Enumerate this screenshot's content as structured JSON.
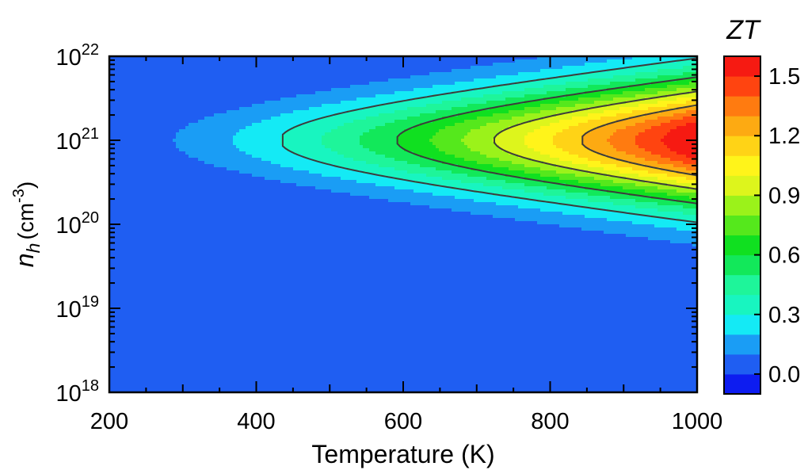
{
  "chart_data": {
    "type": "heatmap",
    "title": "",
    "xlabel": "Temperature (K)",
    "ylabel": {
      "symbol": "n",
      "subscript": "h",
      "unit_open": "(cm",
      "unit_exponent": "-3",
      "unit_close": ")"
    },
    "x_range": [
      200,
      1000
    ],
    "x_ticks": [
      "200",
      "400",
      "600",
      "800",
      "1000"
    ],
    "y_scale": "log",
    "y_range": [
      1e+18,
      1e+22
    ],
    "y_ticks": [
      {
        "base": "10",
        "exp": "18"
      },
      {
        "base": "10",
        "exp": "19"
      },
      {
        "base": "10",
        "exp": "20"
      },
      {
        "base": "10",
        "exp": "21"
      },
      {
        "base": "10",
        "exp": "22"
      }
    ],
    "colorbar": {
      "label": "ZT",
      "range": [
        -0.1,
        1.6
      ],
      "ticks": [
        "0.0",
        "0.3",
        "0.6",
        "0.9",
        "1.2",
        "1.5"
      ],
      "levels": [
        -0.1,
        0.0,
        0.1,
        0.2,
        0.3,
        0.4,
        0.5,
        0.6,
        0.7,
        0.8,
        0.9,
        1.0,
        1.1,
        1.2,
        1.3,
        1.4,
        1.5,
        1.6
      ],
      "colors": [
        "#0d1cf0",
        "#1f5ef2",
        "#1a9df5",
        "#14eaf5",
        "#18f5c0",
        "#1ef59a",
        "#12e85a",
        "#10e020",
        "#55e81c",
        "#9bf21a",
        "#ddf51c",
        "#fff41a",
        "#ffd316",
        "#fdaa12",
        "#ff7b10",
        "#ff4410",
        "#f61a12"
      ]
    },
    "contour_levels": [
      0.3,
      0.6,
      0.9,
      1.2
    ],
    "zt_peak": {
      "value": 1.6,
      "temperature_K": 1000,
      "n_h_cm3": 1e+21
    },
    "grid": false
  }
}
